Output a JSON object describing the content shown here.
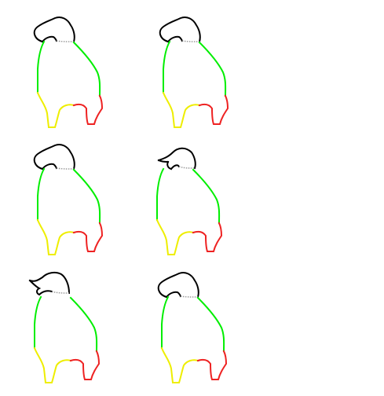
{
  "sprite_sheet": {
    "rows": 3,
    "columns": 2,
    "colors": {
      "background": "#ffffff",
      "head": "#000000",
      "crest": "#9a9a9a",
      "body": "#00ee00",
      "left_foot": "#eeee00",
      "right_foot": "#ee2222"
    },
    "frames": [
      {
        "name": "frame-1",
        "pose": "beak-up"
      },
      {
        "name": "frame-2",
        "pose": "beak-up"
      },
      {
        "name": "frame-3",
        "pose": "beak-up"
      },
      {
        "name": "frame-4",
        "pose": "beak-forward"
      },
      {
        "name": "frame-5",
        "pose": "beak-open"
      },
      {
        "name": "frame-6",
        "pose": "beak-up"
      }
    ]
  }
}
